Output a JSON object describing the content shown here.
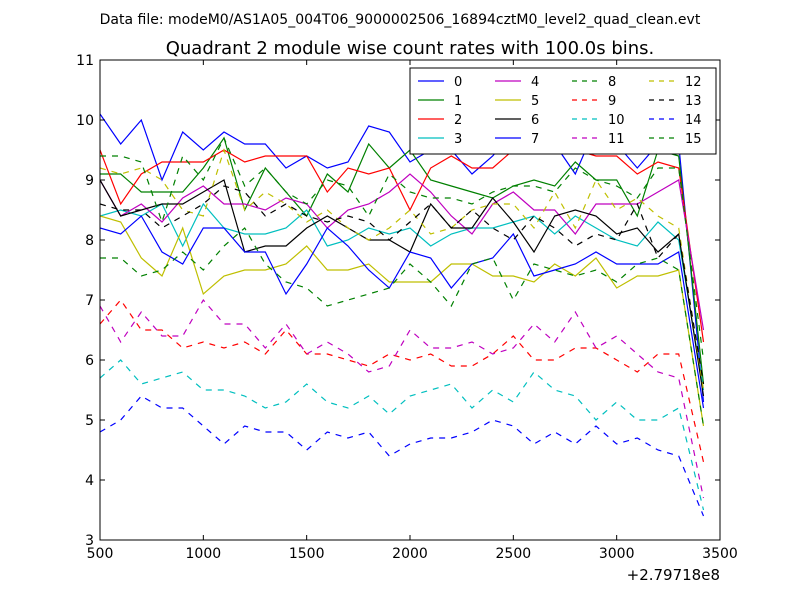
{
  "chart_data": {
    "type": "line",
    "suptitle": "Data file: modeM0/AS1A05_004T06_9000002506_16894cztM0_level2_quad_clean.evt",
    "title": "Quadrant 2 module wise count rates with 100.0s bins.",
    "xlabel": "",
    "ylabel": "",
    "offset_label": "+2.79718e8",
    "xlim": [
      500,
      3500
    ],
    "ylim": [
      3,
      11
    ],
    "xticks": [
      500,
      1000,
      1500,
      2000,
      2500,
      3000,
      3500
    ],
    "yticks": [
      3,
      4,
      5,
      6,
      7,
      8,
      9,
      10,
      11
    ],
    "legend_position": "top-right",
    "x": [
      500,
      600,
      700,
      800,
      900,
      1000,
      1100,
      1200,
      1300,
      1400,
      1500,
      1600,
      1700,
      1800,
      1900,
      2000,
      2100,
      2200,
      2300,
      2400,
      2500,
      2600,
      2700,
      2800,
      2900,
      3000,
      3100,
      3200,
      3300,
      3420
    ],
    "series": [
      {
        "name": "0",
        "color": "#0000ff",
        "dash": "solid",
        "values": [
          10.1,
          9.6,
          10.0,
          9.0,
          9.8,
          9.5,
          9.8,
          9.6,
          9.6,
          9.2,
          9.4,
          9.2,
          9.3,
          9.9,
          9.8,
          9.3,
          9.5,
          9.5,
          9.1,
          9.4,
          9.8,
          9.8,
          9.6,
          9.1,
          9.9,
          9.6,
          9.2,
          9.6,
          9.6,
          5.3
        ]
      },
      {
        "name": "1",
        "color": "#008000",
        "dash": "solid",
        "values": [
          9.1,
          9.1,
          8.8,
          8.8,
          8.8,
          9.2,
          9.7,
          8.5,
          9.2,
          8.8,
          8.4,
          9.1,
          8.8,
          9.6,
          9.2,
          9.5,
          9.0,
          8.9,
          8.8,
          8.7,
          8.9,
          9.0,
          8.9,
          9.3,
          9.0,
          9.0,
          8.4,
          9.5,
          9.4,
          5.6
        ]
      },
      {
        "name": "2",
        "color": "#ff0000",
        "dash": "solid",
        "values": [
          9.5,
          8.6,
          9.1,
          9.3,
          9.3,
          9.3,
          9.5,
          9.3,
          9.4,
          9.4,
          9.4,
          8.8,
          9.2,
          9.1,
          9.2,
          8.5,
          9.2,
          9.4,
          9.2,
          9.2,
          9.5,
          9.6,
          9.6,
          9.5,
          9.4,
          9.4,
          9.1,
          9.3,
          9.2,
          6.3
        ]
      },
      {
        "name": "3",
        "color": "#00bfbf",
        "dash": "solid",
        "values": [
          8.4,
          8.5,
          8.4,
          8.6,
          7.9,
          8.6,
          8.2,
          8.1,
          8.1,
          8.2,
          8.5,
          7.9,
          8.0,
          8.2,
          8.1,
          8.2,
          7.9,
          8.1,
          8.2,
          8.2,
          8.3,
          8.4,
          8.1,
          8.4,
          8.2,
          8.0,
          7.9,
          8.3,
          8.0,
          5.5
        ]
      },
      {
        "name": "4",
        "color": "#bf00bf",
        "dash": "solid",
        "values": [
          9.0,
          8.4,
          8.6,
          8.3,
          8.7,
          8.9,
          8.6,
          8.6,
          8.5,
          8.7,
          8.6,
          8.2,
          8.5,
          8.6,
          8.8,
          9.1,
          8.8,
          8.4,
          8.1,
          8.6,
          8.8,
          8.5,
          8.5,
          8.1,
          8.6,
          8.6,
          8.6,
          8.8,
          9.0,
          6.5
        ]
      },
      {
        "name": "5",
        "color": "#bfbf00",
        "dash": "solid",
        "values": [
          8.4,
          8.3,
          7.7,
          7.4,
          8.2,
          7.1,
          7.4,
          7.5,
          7.5,
          7.6,
          7.9,
          7.5,
          7.5,
          7.6,
          7.3,
          7.3,
          7.3,
          7.6,
          7.6,
          7.4,
          7.4,
          7.3,
          7.6,
          7.4,
          7.7,
          7.2,
          7.4,
          7.4,
          7.5,
          4.9
        ]
      },
      {
        "name": "6",
        "color": "#000000",
        "dash": "solid",
        "values": [
          9.0,
          8.4,
          8.5,
          8.6,
          8.6,
          8.8,
          9.0,
          7.8,
          7.9,
          7.9,
          8.2,
          8.4,
          8.2,
          8.0,
          8.0,
          7.8,
          8.6,
          8.2,
          8.2,
          8.7,
          8.3,
          7.8,
          8.4,
          8.5,
          8.4,
          8.1,
          8.2,
          7.8,
          8.1,
          5.4
        ]
      },
      {
        "name": "7",
        "color": "#0000ff",
        "dash": "solid",
        "values": [
          8.2,
          8.1,
          8.4,
          7.8,
          7.6,
          8.2,
          8.2,
          7.8,
          7.8,
          7.1,
          7.6,
          8.2,
          7.9,
          7.5,
          7.2,
          7.8,
          7.7,
          7.2,
          7.6,
          7.7,
          8.1,
          7.4,
          7.5,
          7.6,
          7.8,
          7.6,
          7.6,
          7.6,
          7.8,
          5.2
        ]
      },
      {
        "name": "8",
        "color": "#008000",
        "dash": "dashed",
        "values": [
          7.7,
          7.7,
          7.4,
          7.5,
          7.8,
          7.5,
          7.9,
          8.2,
          7.6,
          7.3,
          7.2,
          6.9,
          7.0,
          7.1,
          7.2,
          7.6,
          7.3,
          6.9,
          7.6,
          7.7,
          7.0,
          7.6,
          7.5,
          7.4,
          7.5,
          7.3,
          7.6,
          7.7,
          7.5,
          4.9
        ]
      },
      {
        "name": "9",
        "color": "#ff0000",
        "dash": "dashed",
        "values": [
          6.6,
          7.0,
          6.5,
          6.5,
          6.2,
          6.3,
          6.2,
          6.3,
          6.1,
          6.5,
          6.1,
          6.1,
          6.0,
          5.9,
          6.1,
          6.0,
          6.1,
          5.9,
          5.9,
          6.1,
          6.4,
          6.0,
          6.0,
          6.2,
          6.2,
          6.0,
          5.8,
          6.1,
          6.1,
          4.3
        ]
      },
      {
        "name": "10",
        "color": "#00bfbf",
        "dash": "dashed",
        "values": [
          5.7,
          6.0,
          5.6,
          5.7,
          5.8,
          5.5,
          5.5,
          5.4,
          5.2,
          5.3,
          5.6,
          5.3,
          5.2,
          5.4,
          5.1,
          5.4,
          5.5,
          5.6,
          5.2,
          5.5,
          5.3,
          5.8,
          5.5,
          5.4,
          5.0,
          5.3,
          5.0,
          5.0,
          5.2,
          3.5
        ]
      },
      {
        "name": "11",
        "color": "#bf00bf",
        "dash": "dashed",
        "values": [
          6.9,
          6.3,
          6.8,
          6.4,
          6.4,
          7.0,
          6.6,
          6.6,
          6.2,
          6.6,
          6.1,
          6.3,
          6.1,
          5.8,
          5.9,
          6.5,
          6.2,
          6.2,
          6.3,
          6.1,
          6.2,
          6.6,
          6.3,
          6.8,
          6.2,
          6.4,
          6.1,
          5.8,
          5.7,
          3.7
        ]
      },
      {
        "name": "12",
        "color": "#bfbf00",
        "dash": "dashed",
        "values": [
          9.2,
          9.1,
          9.2,
          9.0,
          8.5,
          8.4,
          9.5,
          8.5,
          8.8,
          8.6,
          8.3,
          8.5,
          8.2,
          8.0,
          8.2,
          8.5,
          8.1,
          8.2,
          8.5,
          8.6,
          8.6,
          8.2,
          8.8,
          8.2,
          9.0,
          8.5,
          8.7,
          8.4,
          8.2,
          5.5
        ]
      },
      {
        "name": "13",
        "color": "#000000",
        "dash": "dashed",
        "values": [
          8.6,
          8.5,
          8.5,
          8.2,
          8.4,
          8.6,
          8.9,
          8.8,
          8.4,
          8.6,
          8.4,
          8.3,
          8.4,
          8.3,
          8.0,
          8.3,
          8.6,
          8.2,
          8.5,
          8.2,
          8.0,
          8.4,
          8.2,
          7.9,
          8.1,
          8.0,
          8.6,
          7.7,
          8.1,
          5.6
        ]
      },
      {
        "name": "14",
        "color": "#0000ff",
        "dash": "dashed",
        "values": [
          4.8,
          5.0,
          5.4,
          5.2,
          5.2,
          4.9,
          4.6,
          4.9,
          4.8,
          4.8,
          4.5,
          4.8,
          4.7,
          4.8,
          4.4,
          4.6,
          4.7,
          4.7,
          4.8,
          5.0,
          4.9,
          4.6,
          4.8,
          4.6,
          4.9,
          4.6,
          4.7,
          4.5,
          4.4,
          3.4
        ]
      },
      {
        "name": "15",
        "color": "#008000",
        "dash": "dashed",
        "values": [
          9.4,
          9.4,
          9.3,
          8.3,
          9.4,
          9.0,
          9.7,
          8.9,
          9.2,
          8.8,
          8.6,
          9.0,
          8.9,
          8.4,
          9.1,
          8.8,
          8.7,
          8.7,
          8.6,
          8.8,
          8.9,
          8.9,
          8.8,
          9.2,
          9.0,
          8.9,
          8.7,
          9.2,
          9.2,
          6.0
        ]
      }
    ]
  }
}
